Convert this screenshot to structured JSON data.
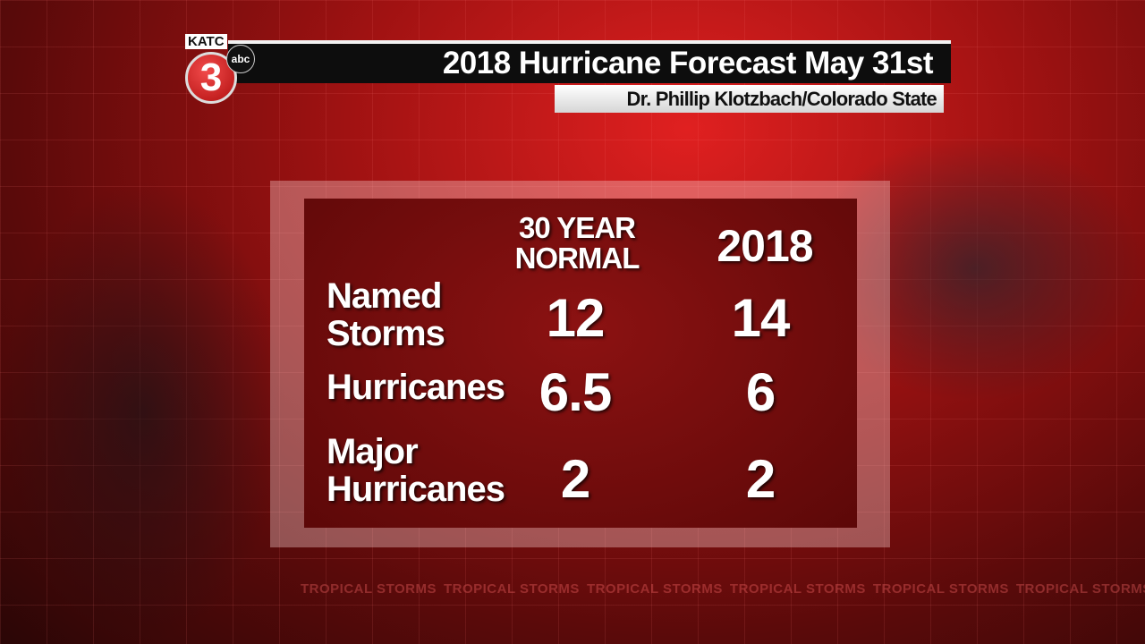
{
  "logo": {
    "station": "KATC",
    "channel": "3",
    "network": "abc"
  },
  "header": {
    "title": "2018 Hurricane Forecast May 31st",
    "subtitle": "Dr. Phillip Klotzbach/Colorado State"
  },
  "table": {
    "columns": [
      "30 YEAR NORMAL",
      "2018"
    ],
    "rows": [
      [
        "Named Storms",
        12,
        14
      ],
      [
        "Hurricanes",
        6.5,
        6
      ],
      [
        "Major Hurricanes",
        2,
        2
      ]
    ]
  },
  "background_text": "TROPICAL STORMS"
}
